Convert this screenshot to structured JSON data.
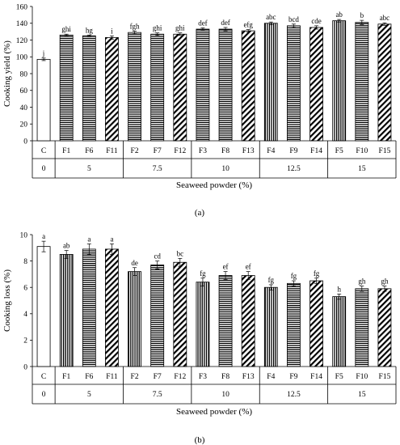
{
  "chart_data": [
    {
      "type": "bar",
      "panel_label": "(a)",
      "ylabel": "Cooking yield (%)",
      "xlabel": "Seaweed powder (%)",
      "ylim": [
        0,
        160
      ],
      "yticks": [
        "0",
        "20",
        "40",
        "60",
        "80",
        "100",
        "120",
        "140",
        "160"
      ],
      "categories": [
        "C",
        "F1",
        "F6",
        "F11",
        "F2",
        "F7",
        "F12",
        "F3",
        "F8",
        "F13",
        "F4",
        "F9",
        "F14",
        "F5",
        "F10",
        "F15"
      ],
      "groups": [
        {
          "label": "0",
          "size": 1
        },
        {
          "label": "5",
          "size": 3
        },
        {
          "label": "7.5",
          "size": 3
        },
        {
          "label": "10",
          "size": 3
        },
        {
          "label": "12.5",
          "size": 3
        },
        {
          "label": "15",
          "size": 3
        }
      ],
      "values": [
        97,
        126,
        125,
        123,
        129,
        127,
        127,
        133,
        133,
        131,
        140,
        137,
        135,
        143,
        141,
        139
      ],
      "errors": [
        1.5,
        1,
        1,
        2,
        1.5,
        1.5,
        1.5,
        1.5,
        2,
        1.5,
        1.5,
        2,
        2,
        1.5,
        2.5,
        1.5
      ],
      "labels": [
        "j",
        "ghi",
        "hg",
        "i",
        "fgh",
        "ghi",
        "ghi",
        "def",
        "def",
        "efg",
        "abc",
        "bcd",
        "cde",
        "ab",
        "b",
        "abc"
      ],
      "patterns": [
        "white",
        "hlines",
        "hlines",
        "diag",
        "hlines",
        "hlines",
        "diag",
        "hlines",
        "hlines",
        "diag",
        "vlines",
        "hlines",
        "diag",
        "vlines",
        "hlines",
        "diag"
      ],
      "grid": false,
      "legend": "none"
    },
    {
      "type": "bar",
      "panel_label": "(b)",
      "ylabel": "Cooking loss (%)",
      "xlabel": "Seaweed powder (%)",
      "ylim": [
        0,
        10
      ],
      "yticks": [
        "0",
        "2",
        "4",
        "6",
        "8",
        "10"
      ],
      "categories": [
        "C",
        "F1",
        "F6",
        "F11",
        "F2",
        "F7",
        "F12",
        "F3",
        "F8",
        "F13",
        "F4",
        "F9",
        "F14",
        "F5",
        "F10",
        "F15"
      ],
      "groups": [
        {
          "label": "0",
          "size": 1
        },
        {
          "label": "5",
          "size": 3
        },
        {
          "label": "7.5",
          "size": 3
        },
        {
          "label": "10",
          "size": 3
        },
        {
          "label": "12.5",
          "size": 3
        },
        {
          "label": "15",
          "size": 3
        }
      ],
      "values": [
        9.1,
        8.5,
        8.9,
        8.9,
        7.2,
        7.7,
        7.9,
        6.4,
        6.9,
        6.9,
        6.0,
        6.3,
        6.5,
        5.3,
        5.9,
        5.9
      ],
      "errors": [
        0.4,
        0.3,
        0.4,
        0.4,
        0.3,
        0.3,
        0.3,
        0.3,
        0.3,
        0.3,
        0.2,
        0.2,
        0.2,
        0.2,
        0.2,
        0.2
      ],
      "labels": [
        "a",
        "ab",
        "a",
        "a",
        "de",
        "cd",
        "bc",
        "fg",
        "ef",
        "ef",
        "fg",
        "fg",
        "fg",
        "h",
        "gh",
        "gh"
      ],
      "patterns": [
        "white",
        "vlines",
        "hlines",
        "diag",
        "vlines",
        "hlines",
        "diag",
        "vlines",
        "hlines",
        "diag",
        "vlines",
        "hlines",
        "diag",
        "vlines",
        "hlines",
        "diag"
      ],
      "grid": false,
      "legend": "none"
    }
  ]
}
